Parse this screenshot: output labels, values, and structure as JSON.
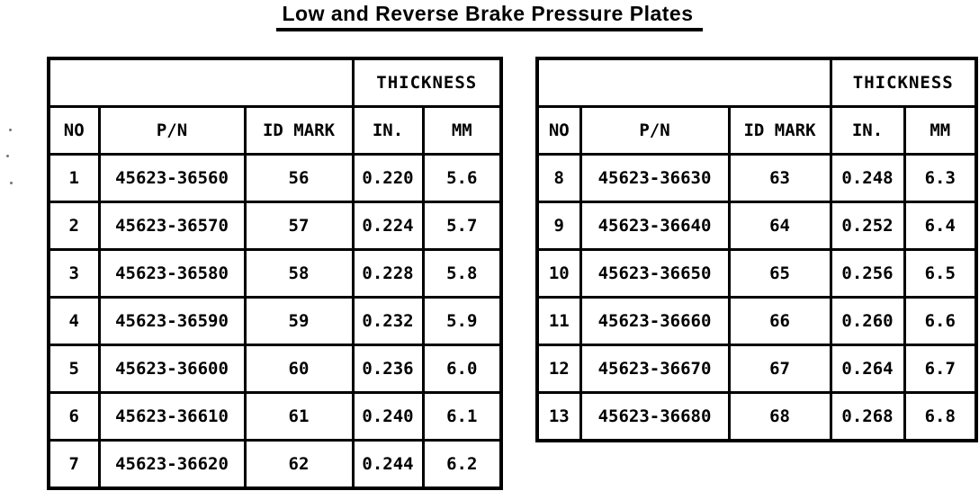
{
  "title": "Low and Reverse Brake Pressure Plates",
  "colors": {
    "ink": "#000000",
    "paper": "#ffffff"
  },
  "tables": [
    {
      "name": "left-table",
      "thickness_header": "THICKNESS",
      "columns": [
        "NO",
        "P/N",
        "ID MARK",
        "IN.",
        "MM"
      ],
      "rows": [
        [
          "1",
          "45623-36560",
          "56",
          "0.220",
          "5.6"
        ],
        [
          "2",
          "45623-36570",
          "57",
          "0.224",
          "5.7"
        ],
        [
          "3",
          "45623-36580",
          "58",
          "0.228",
          "5.8"
        ],
        [
          "4",
          "45623-36590",
          "59",
          "0.232",
          "5.9"
        ],
        [
          "5",
          "45623-36600",
          "60",
          "0.236",
          "6.0"
        ],
        [
          "6",
          "45623-36610",
          "61",
          "0.240",
          "6.1"
        ],
        [
          "7",
          "45623-36620",
          "62",
          "0.244",
          "6.2"
        ]
      ]
    },
    {
      "name": "right-table",
      "thickness_header": "THICKNESS",
      "columns": [
        "NO",
        "P/N",
        "ID MARK",
        "IN.",
        "MM"
      ],
      "rows": [
        [
          "8",
          "45623-36630",
          "63",
          "0.248",
          "6.3"
        ],
        [
          "9",
          "45623-36640",
          "64",
          "0.252",
          "6.4"
        ],
        [
          "10",
          "45623-36650",
          "65",
          "0.256",
          "6.5"
        ],
        [
          "11",
          "45623-36660",
          "66",
          "0.260",
          "6.6"
        ],
        [
          "12",
          "45623-36670",
          "67",
          "0.264",
          "6.7"
        ],
        [
          "13",
          "45623-36680",
          "68",
          "0.268",
          "6.8"
        ]
      ]
    }
  ]
}
